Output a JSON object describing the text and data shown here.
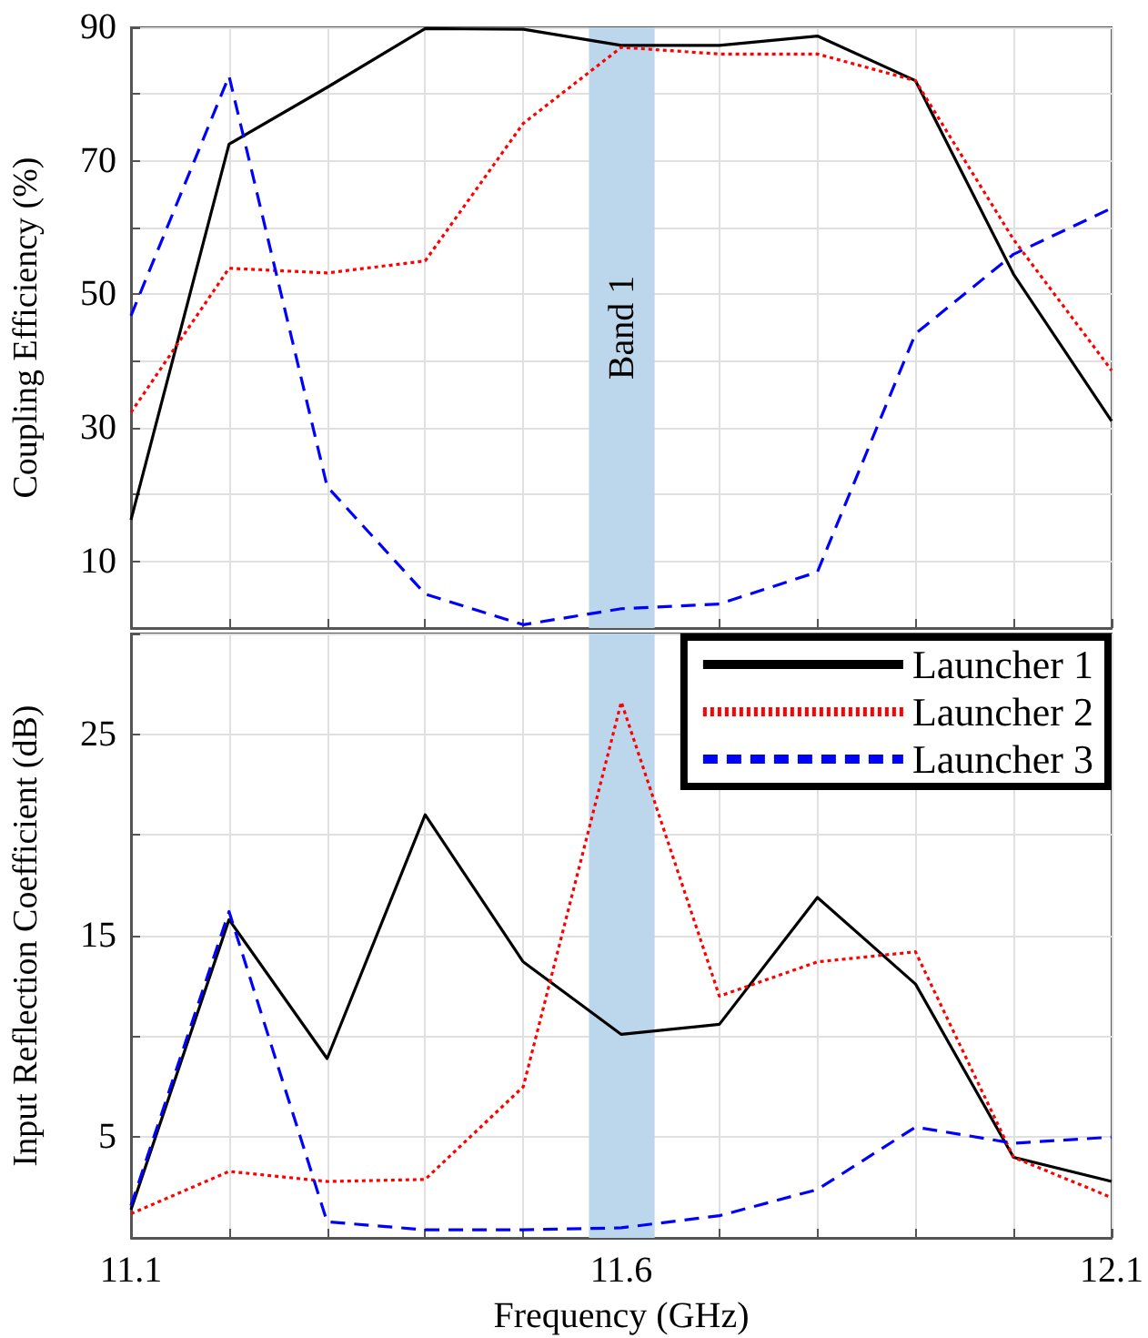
{
  "chart_data": [
    {
      "type": "line",
      "ylabel": "Coupling Efficiency (%)",
      "x": [
        11.1,
        11.2,
        11.3,
        11.4,
        11.5,
        11.6,
        11.7,
        11.8,
        11.9,
        12.0,
        12.1
      ],
      "xlim": [
        11.1,
        12.1
      ],
      "xticks": [
        11.1,
        {
          "value": 11.2,
          "label": null
        },
        {
          "value": 11.3,
          "label": null
        },
        {
          "value": 11.4,
          "label": null
        },
        {
          "value": 11.5,
          "label": null
        },
        11.6,
        {
          "value": 11.7,
          "label": null
        },
        {
          "value": 11.8,
          "label": null
        },
        {
          "value": 11.9,
          "label": null
        },
        {
          "value": 12.0,
          "label": null
        },
        12.1
      ],
      "ylim": [
        0,
        90
      ],
      "yticks": [
        10,
        {
          "value": 20,
          "label": null
        },
        30,
        {
          "value": 40,
          "label": null
        },
        50,
        {
          "value": 60,
          "label": null
        },
        70,
        {
          "value": 80,
          "label": null
        },
        90
      ],
      "tick_labels": "y",
      "grid": true,
      "marker": "none",
      "bands": [
        {
          "axis": "x",
          "from": 11.567,
          "to": 11.634,
          "label": "Band 1",
          "color": "#bcd7ec"
        }
      ],
      "series": [
        {
          "color": "#000000",
          "line_style": "solid",
          "values": [
            16.2,
            72.5,
            81,
            89.8,
            89.7,
            87.3,
            87.3,
            88.7,
            82,
            53,
            31
          ]
        },
        {
          "color": "#ff0000",
          "line_style": "dotted",
          "values": [
            32.3,
            53.9,
            53.2,
            55,
            75.6,
            87,
            86,
            86,
            82,
            58.2,
            38.6
          ]
        },
        {
          "color": "#0000ff",
          "line_style": "dashed",
          "values": [
            46.8,
            82.7,
            21.2,
            5.1,
            0.5,
            2.9,
            3.6,
            8.4,
            44.1,
            56,
            62.9
          ]
        }
      ]
    },
    {
      "type": "line",
      "xlabel": "Frequency (GHz)",
      "ylabel": "Input Reflection Coefficient (dB)",
      "x": [
        11.1,
        11.2,
        11.3,
        11.4,
        11.5,
        11.6,
        11.7,
        11.8,
        11.9,
        12.0,
        12.1
      ],
      "xlim": [
        11.1,
        12.1
      ],
      "xticks": [
        11.1,
        {
          "value": 11.2,
          "label": null
        },
        {
          "value": 11.3,
          "label": null
        },
        {
          "value": 11.4,
          "label": null
        },
        {
          "value": 11.5,
          "label": null
        },
        11.6,
        {
          "value": 11.7,
          "label": null
        },
        {
          "value": 11.8,
          "label": null
        },
        {
          "value": 11.9,
          "label": null
        },
        {
          "value": 12.0,
          "label": null
        },
        12.1
      ],
      "ylim": [
        0,
        30
      ],
      "yticks": [
        {
          "value": 0,
          "label": null
        },
        5,
        {
          "value": 10,
          "label": null
        },
        15,
        {
          "value": 20,
          "label": null
        },
        25,
        {
          "value": 30,
          "label": null
        }
      ],
      "grid": true,
      "marker": "none",
      "legend": "top right",
      "bands": [
        {
          "axis": "x",
          "from": 11.567,
          "to": 11.634,
          "color": "#bcd7ec"
        }
      ],
      "series": [
        {
          "name": "Launcher 1",
          "color": "#000000",
          "line_style": "solid",
          "values": [
            1.4,
            15.8,
            8.9,
            21,
            13.7,
            10.1,
            10.6,
            16.9,
            12.6,
            4.0,
            2.8
          ]
        },
        {
          "name": "Launcher 2",
          "color": "#ff0000",
          "line_style": "dotted",
          "values": [
            1.2,
            3.3,
            2.8,
            2.9,
            7.5,
            26.6,
            12,
            13.7,
            14.2,
            4.0,
            2.0
          ]
        },
        {
          "name": "Launcher 3",
          "color": "#0000ff",
          "line_style": "dashed",
          "values": [
            1.6,
            16.2,
            0.8,
            0.4,
            0.4,
            0.5,
            1.1,
            2.4,
            5.5,
            4.7,
            5.0
          ]
        }
      ]
    }
  ]
}
